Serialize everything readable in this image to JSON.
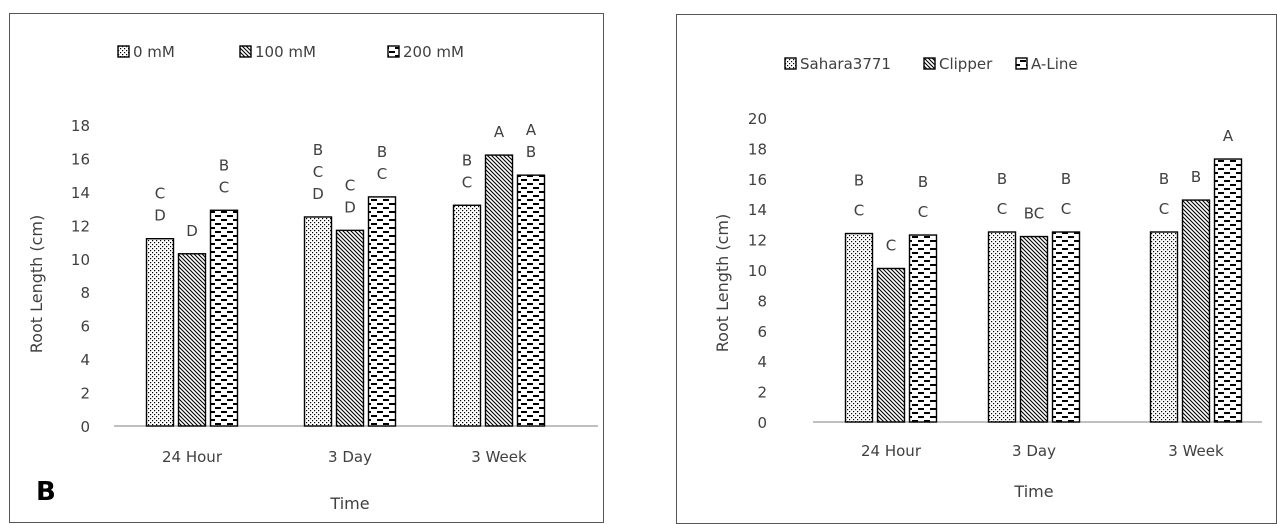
{
  "chart_data": [
    {
      "type": "bar",
      "panel_label": "B",
      "categories": [
        "24 Hour",
        "3 Day",
        "3 Week"
      ],
      "series": [
        {
          "name": "0 mM",
          "pattern": "dots",
          "values": [
            11.2,
            12.5,
            13.2
          ],
          "letters": [
            [
              "C",
              "D"
            ],
            [
              "B",
              "C",
              "D"
            ],
            [
              "B",
              "C"
            ]
          ]
        },
        {
          "name": "100 mM",
          "pattern": "diagonal",
          "values": [
            10.3,
            11.7,
            16.2
          ],
          "letters": [
            [
              "D"
            ],
            [
              "C",
              "D"
            ],
            [
              "A"
            ]
          ]
        },
        {
          "name": "200 mM",
          "pattern": "dashes",
          "values": [
            12.9,
            13.7,
            15.0
          ],
          "letters": [
            [
              "B",
              "C"
            ],
            [
              "B",
              "C"
            ],
            [
              "A",
              "B"
            ]
          ]
        }
      ],
      "ylabel": "Root Length (cm)",
      "xlabel": "Time",
      "ylim": [
        0,
        18
      ],
      "yticks": [
        0,
        2,
        4,
        6,
        8,
        10,
        12,
        14,
        16,
        18
      ],
      "grid": false,
      "legend_position": "top"
    },
    {
      "type": "bar",
      "categories": [
        "24 Hour",
        "3 Day",
        "3 Week"
      ],
      "series": [
        {
          "name": "Sahara3771",
          "pattern": "dots",
          "values": [
            12.4,
            12.5,
            12.5
          ],
          "letters": [
            [
              "B",
              "C"
            ],
            [
              "B",
              "C"
            ],
            [
              "B",
              "C"
            ]
          ]
        },
        {
          "name": "Clipper",
          "pattern": "diagonal",
          "values": [
            10.1,
            12.2,
            14.6
          ],
          "letters": [
            [
              "C"
            ],
            [
              "BC"
            ],
            [
              "B"
            ]
          ]
        },
        {
          "name": "A-Line",
          "pattern": "dashes",
          "values": [
            12.3,
            12.5,
            17.3
          ],
          "letters": [
            [
              "B",
              "C"
            ],
            [
              "B",
              "C"
            ],
            [
              "A"
            ]
          ]
        }
      ],
      "ylabel": "Root Length (cm)",
      "xlabel": "Time",
      "ylim": [
        0,
        20
      ],
      "yticks": [
        0,
        2,
        4,
        6,
        8,
        10,
        12,
        14,
        16,
        18,
        20
      ],
      "grid": false,
      "legend_position": "top"
    }
  ],
  "colors": {
    "text": "#404040",
    "bar_outline": "#000000",
    "axis": "#9a9a9a",
    "frame": "#555555"
  }
}
